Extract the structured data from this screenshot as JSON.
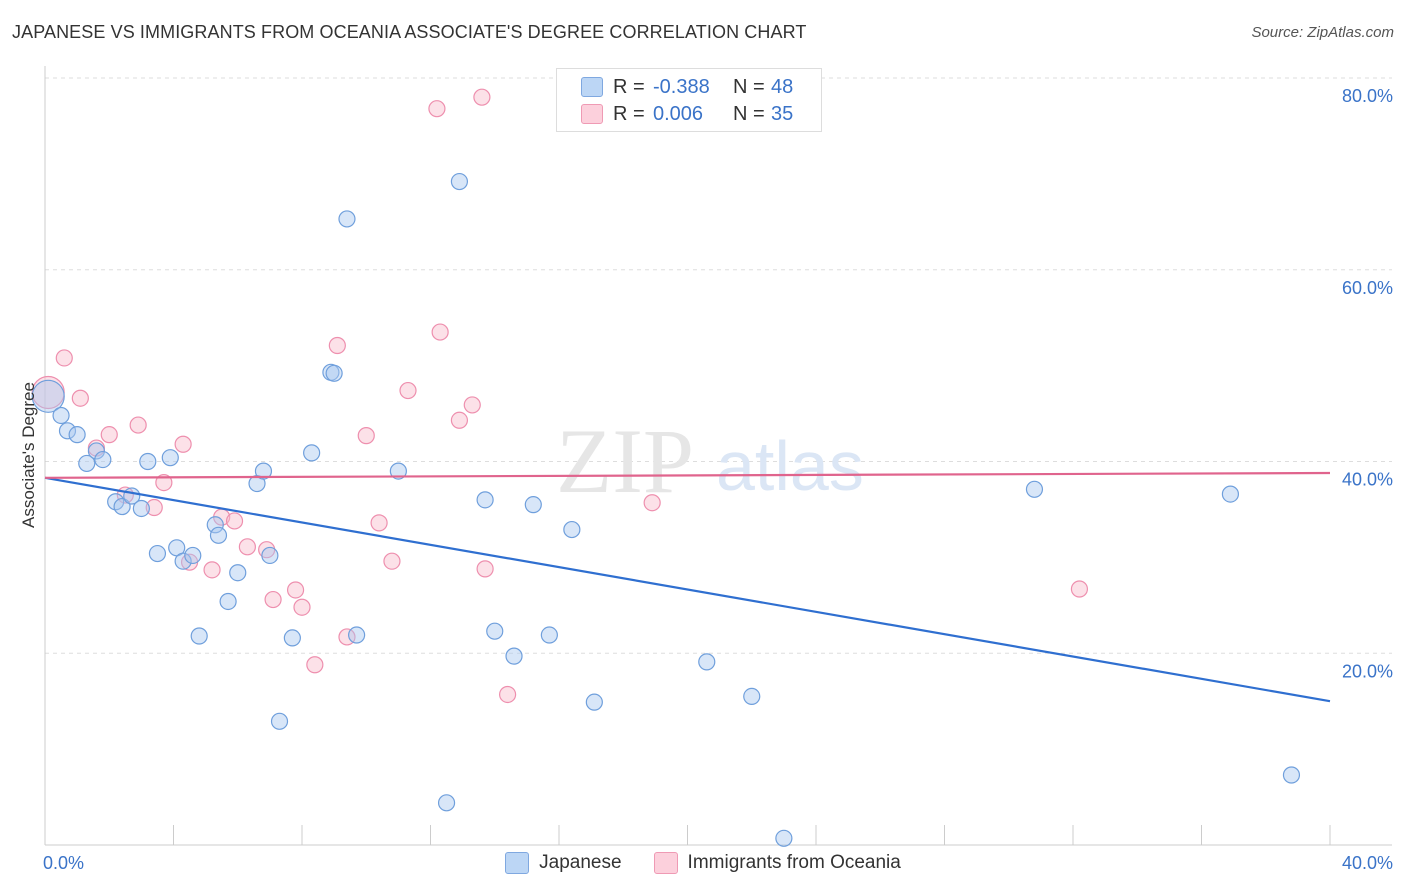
{
  "header": {
    "title": "JAPANESE VS IMMIGRANTS FROM OCEANIA ASSOCIATE'S DEGREE CORRELATION CHART",
    "source": "Source: ZipAtlas.com"
  },
  "legend_top": {
    "rows": [
      {
        "r_label": "R =",
        "r_value": "-0.388",
        "n_label": "N =",
        "n_value": "48"
      },
      {
        "r_label": "R =",
        "r_value": "0.006",
        "n_label": "N =",
        "n_value": "35"
      }
    ]
  },
  "legend_bottom": {
    "items": [
      "Japanese",
      "Immigrants from Oceania"
    ]
  },
  "watermark": {
    "zip": "ZIP",
    "atlas": "atlas"
  },
  "colors": {
    "blue_fill": "#a9c8f0",
    "blue_stroke": "#6f9fdc",
    "blue_line": "#2f6fd0",
    "pink_fill": "#f8bccd",
    "pink_stroke": "#ee8fae",
    "pink_line": "#e0648d",
    "tick_text": "#3a73c8"
  },
  "chart_data": {
    "type": "scatter",
    "title": "JAPANESE VS IMMIGRANTS FROM OCEANIA ASSOCIATE'S DEGREE CORRELATION CHART",
    "xlabel": "",
    "ylabel": "Associate's Degree",
    "xlim": [
      0,
      40
    ],
    "ylim": [
      0,
      80
    ],
    "x_tick_labels": [
      "0.0%",
      "40.0%"
    ],
    "y_tick_labels": [
      "20.0%",
      "40.0%",
      "60.0%",
      "80.0%"
    ],
    "y_ticks": [
      20,
      40,
      60,
      80
    ],
    "grid": true,
    "legend_position": "top-center",
    "series": [
      {
        "name": "Japanese",
        "color": "#6f9fdc",
        "r": -0.388,
        "n": 48,
        "trend": {
          "x": [
            0,
            40
          ],
          "y": [
            38.3,
            15.0
          ]
        },
        "points": [
          [
            0.1,
            46.8
          ],
          [
            0.5,
            44.8
          ],
          [
            0.7,
            43.2
          ],
          [
            1.0,
            42.8
          ],
          [
            1.3,
            39.8
          ],
          [
            1.6,
            41.1
          ],
          [
            1.8,
            40.2
          ],
          [
            2.2,
            35.8
          ],
          [
            2.4,
            35.3
          ],
          [
            2.7,
            36.4
          ],
          [
            3.0,
            35.1
          ],
          [
            3.2,
            40.0
          ],
          [
            3.5,
            30.4
          ],
          [
            3.9,
            40.4
          ],
          [
            4.1,
            31.0
          ],
          [
            4.3,
            29.6
          ],
          [
            4.6,
            30.2
          ],
          [
            4.8,
            21.8
          ],
          [
            5.3,
            33.4
          ],
          [
            5.4,
            32.3
          ],
          [
            5.7,
            25.4
          ],
          [
            6.0,
            28.4
          ],
          [
            6.6,
            37.7
          ],
          [
            6.8,
            39.0
          ],
          [
            7.0,
            30.2
          ],
          [
            7.3,
            12.9
          ],
          [
            7.7,
            21.6
          ],
          [
            8.3,
            40.9
          ],
          [
            8.9,
            49.3
          ],
          [
            9.0,
            49.2
          ],
          [
            9.4,
            65.3
          ],
          [
            9.7,
            21.9
          ],
          [
            11.0,
            39.0
          ],
          [
            12.5,
            4.4
          ],
          [
            12.9,
            69.2
          ],
          [
            13.7,
            36.0
          ],
          [
            14.0,
            22.3
          ],
          [
            14.6,
            19.7
          ],
          [
            15.2,
            35.5
          ],
          [
            15.7,
            21.9
          ],
          [
            16.4,
            32.9
          ],
          [
            17.1,
            14.9
          ],
          [
            20.6,
            19.1
          ],
          [
            22.0,
            15.5
          ],
          [
            23.0,
            0.7
          ],
          [
            30.8,
            37.1
          ],
          [
            36.9,
            36.6
          ],
          [
            38.8,
            7.3
          ]
        ]
      },
      {
        "name": "Immigrants from Oceania",
        "color": "#ee8fae",
        "r": 0.006,
        "n": 35,
        "trend": {
          "x": [
            0,
            40
          ],
          "y": [
            38.3,
            38.8
          ]
        },
        "points": [
          [
            0.1,
            47.2
          ],
          [
            0.6,
            50.8
          ],
          [
            1.1,
            46.6
          ],
          [
            1.6,
            41.4
          ],
          [
            2.0,
            42.8
          ],
          [
            2.5,
            36.5
          ],
          [
            2.9,
            43.8
          ],
          [
            3.4,
            35.2
          ],
          [
            3.7,
            37.8
          ],
          [
            4.3,
            41.8
          ],
          [
            4.5,
            29.5
          ],
          [
            5.2,
            28.7
          ],
          [
            5.5,
            34.2
          ],
          [
            5.9,
            33.8
          ],
          [
            6.3,
            31.1
          ],
          [
            6.9,
            30.8
          ],
          [
            7.1,
            25.6
          ],
          [
            7.8,
            26.6
          ],
          [
            8.0,
            24.8
          ],
          [
            8.4,
            18.8
          ],
          [
            9.1,
            52.1
          ],
          [
            9.4,
            21.7
          ],
          [
            10.0,
            42.7
          ],
          [
            10.4,
            33.6
          ],
          [
            10.8,
            29.6
          ],
          [
            11.3,
            47.4
          ],
          [
            12.2,
            76.8
          ],
          [
            12.3,
            53.5
          ],
          [
            12.9,
            44.3
          ],
          [
            13.3,
            45.9
          ],
          [
            13.7,
            28.8
          ],
          [
            14.4,
            15.7
          ],
          [
            18.9,
            35.7
          ],
          [
            32.2,
            26.7
          ],
          [
            13.6,
            78.0
          ]
        ]
      }
    ]
  }
}
